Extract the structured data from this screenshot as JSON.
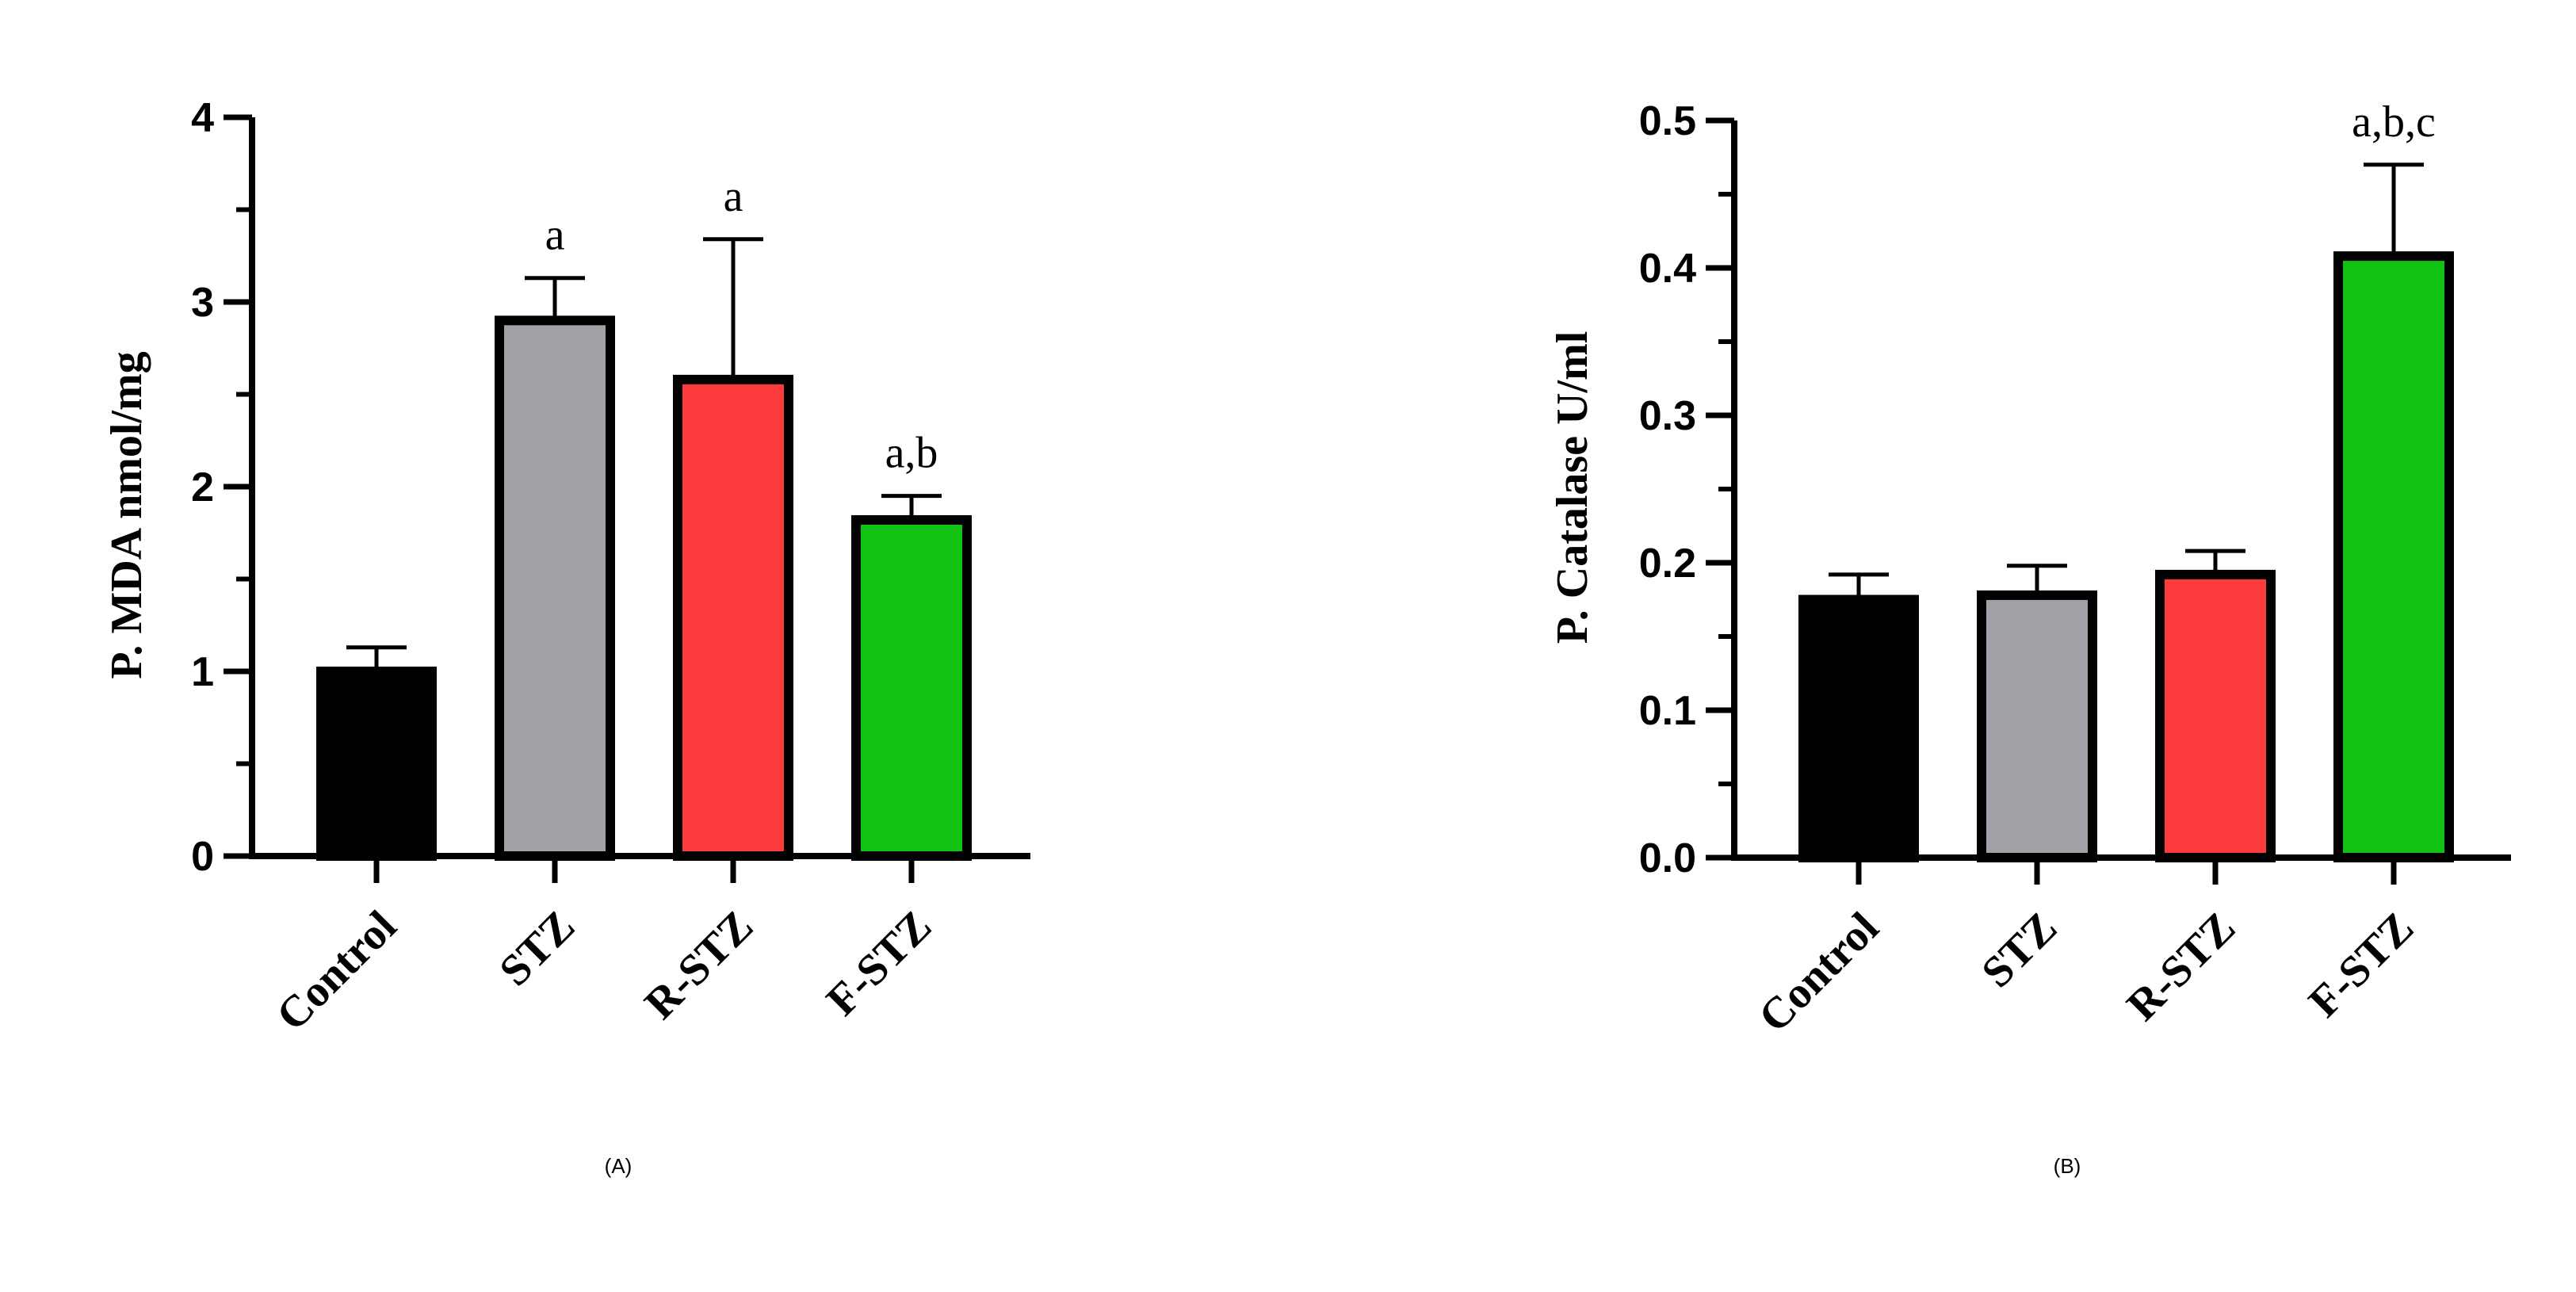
{
  "chart_data": [
    {
      "type": "bar",
      "panel_label": "(A)",
      "ylabel": "P. MDA nmol/mg",
      "ylim": [
        0,
        4
      ],
      "yticks": [
        "0",
        "1",
        "2",
        "3",
        "4"
      ],
      "categories": [
        "Control",
        "STZ",
        "R-STZ",
        "F-STZ"
      ],
      "values": [
        1.0,
        2.9,
        2.58,
        1.82
      ],
      "errors": [
        0.13,
        0.23,
        0.76,
        0.13
      ],
      "annotations": [
        "",
        "a",
        "a",
        "a,b"
      ],
      "colors": [
        "#000000",
        "#a39fa6",
        "#fc3c3c",
        "#13c313"
      ],
      "grid": false
    },
    {
      "type": "bar",
      "panel_label": "(B)",
      "ylabel": "P. Catalase U/ml",
      "ylim": [
        0,
        0.5
      ],
      "yticks": [
        "0.0",
        "0.1",
        "0.2",
        "0.3",
        "0.4",
        "0.5"
      ],
      "categories": [
        "Control",
        "STZ",
        "R-STZ",
        "F-STZ"
      ],
      "values": [
        0.175,
        0.178,
        0.192,
        0.408
      ],
      "errors": [
        0.017,
        0.02,
        0.016,
        0.062
      ],
      "annotations": [
        "",
        "",
        "",
        "a,b,c"
      ],
      "colors": [
        "#000000",
        "#a39fa6",
        "#fc3c3c",
        "#13c313"
      ],
      "grid": false
    }
  ]
}
